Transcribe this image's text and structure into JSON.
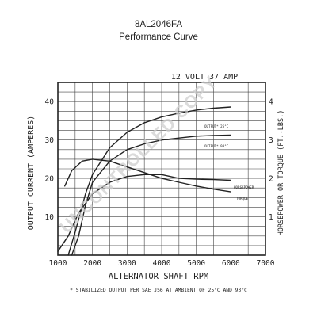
{
  "header": {
    "part_number": "8AL2046FA",
    "subtitle": "Performance Curve"
  },
  "watermark": "UNCONTROLLED COPY",
  "footnote": "* STABILIZED OUTPUT PER SAE J56 AT AMBIENT OF 25°C AND 93°C",
  "colors": {
    "ink": "#222222",
    "grid": "#444444",
    "watermark": "#cfcfcf"
  },
  "chart_data": {
    "type": "line",
    "title": "12 VOLT 37 AMP",
    "xlabel": "ALTERNATOR SHAFT RPM",
    "ylabel": "OUTPUT CURRENT (AMPERES)",
    "y2label": "HORSEPOWER OR TORQUE (FT.-LBS.)",
    "xlim": [
      1000,
      7000
    ],
    "ylim": [
      0,
      45
    ],
    "y2lim": [
      0,
      4.5
    ],
    "x_ticks": [
      {
        "value": 1000,
        "label": "1000"
      },
      {
        "value": 2000,
        "label": "2000"
      },
      {
        "value": 3000,
        "label": "3000"
      },
      {
        "value": 4000,
        "label": "4000"
      },
      {
        "value": 5000,
        "label": "5000"
      },
      {
        "value": 6000,
        "label": "6000"
      },
      {
        "value": 7000,
        "label": "7000"
      }
    ],
    "y_ticks": [
      {
        "value": 10,
        "label": "10"
      },
      {
        "value": 20,
        "label": "20"
      },
      {
        "value": 30,
        "label": "30"
      },
      {
        "value": 40,
        "label": "40"
      }
    ],
    "y2_ticks": [
      {
        "value": 1,
        "label": "1"
      },
      {
        "value": 2,
        "label": "2"
      },
      {
        "value": 3,
        "label": "3"
      },
      {
        "value": 4,
        "label": "4"
      }
    ],
    "grid": true,
    "series": [
      {
        "name": "OUTPUT* 25°C",
        "axis": "left",
        "x": [
          1300,
          1500,
          1800,
          2000,
          2500,
          3000,
          3500,
          4000,
          4500,
          5000,
          5500,
          6000
        ],
        "y": [
          0,
          6,
          16,
          21,
          28,
          32,
          34.5,
          36,
          37,
          37.8,
          38.3,
          38.6
        ]
      },
      {
        "name": "OUTPUT* 93°C",
        "axis": "left",
        "x": [
          1400,
          1600,
          1800,
          2000,
          2500,
          3000,
          3500,
          4000,
          4500,
          5000,
          5500,
          6000
        ],
        "y": [
          0,
          5,
          13,
          19,
          24.5,
          27.5,
          29,
          30,
          30.5,
          31,
          31.2,
          31.3
        ]
      },
      {
        "name": "HORSEPOWER",
        "axis": "right",
        "x": [
          1000,
          1300,
          1600,
          2000,
          2500,
          3000,
          3500,
          4000,
          4500,
          5000,
          5500,
          6000
        ],
        "y": [
          0.1,
          0.5,
          1.1,
          1.6,
          1.9,
          2.05,
          2.1,
          2.1,
          2.0,
          1.98,
          1.97,
          1.95
        ]
      },
      {
        "name": "TORQUE",
        "axis": "right",
        "x": [
          1200,
          1400,
          1700,
          2000,
          2500,
          3000,
          3500,
          4000,
          4500,
          5000,
          5500,
          6000
        ],
        "y": [
          1.8,
          2.2,
          2.45,
          2.5,
          2.45,
          2.3,
          2.15,
          2.0,
          1.9,
          1.8,
          1.72,
          1.65
        ]
      }
    ]
  }
}
